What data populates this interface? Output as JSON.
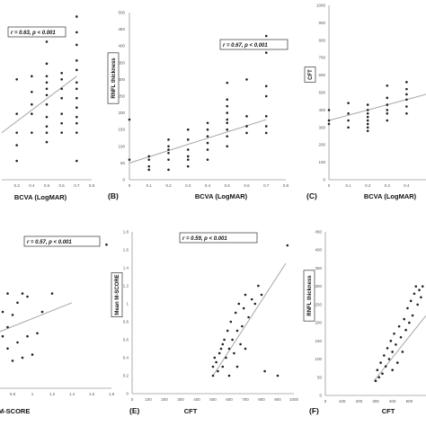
{
  "chart_data": [
    {
      "type": "scatter",
      "panel_label": "",
      "xlabel": "BCVA (LogMAR)",
      "ylabel": "",
      "stat": "r = 0.63, p < 0.001",
      "xlim": [
        0.2,
        0.8
      ],
      "ylim": [
        0,
        550
      ],
      "xticks": [
        "0.3",
        "0.4",
        "0.5",
        "0.6",
        "0.7",
        "0.8"
      ],
      "yticks": [],
      "trend": [
        [
          0.2,
          150
        ],
        [
          0.7,
          330
        ]
      ],
      "points": [
        [
          0.3,
          60
        ],
        [
          0.3,
          110
        ],
        [
          0.3,
          150
        ],
        [
          0.3,
          210
        ],
        [
          0.3,
          320
        ],
        [
          0.4,
          150
        ],
        [
          0.4,
          210
        ],
        [
          0.4,
          240
        ],
        [
          0.4,
          280
        ],
        [
          0.4,
          330
        ],
        [
          0.5,
          120
        ],
        [
          0.5,
          150
        ],
        [
          0.5,
          170
        ],
        [
          0.5,
          200
        ],
        [
          0.5,
          240
        ],
        [
          0.5,
          270
        ],
        [
          0.5,
          290
        ],
        [
          0.5,
          310
        ],
        [
          0.5,
          330
        ],
        [
          0.5,
          370
        ],
        [
          0.5,
          440
        ],
        [
          0.6,
          150
        ],
        [
          0.6,
          180
        ],
        [
          0.6,
          210
        ],
        [
          0.6,
          260
        ],
        [
          0.6,
          290
        ],
        [
          0.6,
          320
        ],
        [
          0.6,
          340
        ],
        [
          0.7,
          60
        ],
        [
          0.7,
          150
        ],
        [
          0.7,
          180
        ],
        [
          0.7,
          200
        ],
        [
          0.7,
          230
        ],
        [
          0.7,
          260
        ],
        [
          0.7,
          290
        ],
        [
          0.7,
          310
        ],
        [
          0.7,
          350
        ],
        [
          0.7,
          380
        ],
        [
          0.7,
          430
        ],
        [
          0.7,
          470
        ],
        [
          0.7,
          520
        ]
      ]
    },
    {
      "type": "scatter",
      "panel_label": "(B)",
      "xlabel": "BCVA (LogMAR)",
      "ylabel": "RNFL thickness",
      "stat": "r = 0.67, p < 0.001",
      "xlim": [
        0,
        0.8
      ],
      "ylim": [
        0,
        500
      ],
      "xticks": [
        "0",
        "0.1",
        "0.2",
        "0.3",
        "0.4",
        "0.5",
        "0.6",
        "0.7",
        "0.8"
      ],
      "yticks": [
        "0",
        "50",
        "100",
        "150",
        "200",
        "250",
        "300",
        "350",
        "400",
        "450",
        "500"
      ],
      "trend": [
        [
          0,
          50
        ],
        [
          0.7,
          180
        ]
      ],
      "points": [
        [
          0,
          60
        ],
        [
          0,
          180
        ],
        [
          0.1,
          30
        ],
        [
          0.1,
          40
        ],
        [
          0.1,
          60
        ],
        [
          0.1,
          70
        ],
        [
          0.2,
          30
        ],
        [
          0.2,
          60
        ],
        [
          0.2,
          80
        ],
        [
          0.2,
          90
        ],
        [
          0.2,
          100
        ],
        [
          0.2,
          120
        ],
        [
          0.3,
          40
        ],
        [
          0.3,
          60
        ],
        [
          0.3,
          70
        ],
        [
          0.3,
          90
        ],
        [
          0.3,
          120
        ],
        [
          0.3,
          150
        ],
        [
          0.4,
          60
        ],
        [
          0.4,
          90
        ],
        [
          0.4,
          110
        ],
        [
          0.4,
          130
        ],
        [
          0.4,
          150
        ],
        [
          0.4,
          170
        ],
        [
          0.5,
          100
        ],
        [
          0.5,
          130
        ],
        [
          0.5,
          150
        ],
        [
          0.5,
          170
        ],
        [
          0.5,
          180
        ],
        [
          0.5,
          200
        ],
        [
          0.5,
          220
        ],
        [
          0.5,
          240
        ],
        [
          0.5,
          290
        ],
        [
          0.6,
          140
        ],
        [
          0.6,
          160
        ],
        [
          0.6,
          190
        ],
        [
          0.6,
          300
        ],
        [
          0.7,
          140
        ],
        [
          0.7,
          160
        ],
        [
          0.7,
          190
        ],
        [
          0.7,
          250
        ],
        [
          0.7,
          280
        ],
        [
          0.7,
          380
        ],
        [
          0.7,
          400
        ],
        [
          0.7,
          430
        ]
      ]
    },
    {
      "type": "scatter",
      "panel_label": "(C)",
      "xlabel": "BCVA (LogMAR)",
      "ylabel": "CFT",
      "stat": "",
      "xlim": [
        0,
        0.5
      ],
      "ylim": [
        0,
        1000
      ],
      "xticks": [
        "0",
        "0.1",
        "0.2",
        "0.3",
        "0.4"
      ],
      "yticks": [
        "0",
        "100",
        "200",
        "300",
        "400",
        "500",
        "600",
        "700",
        "800",
        "900",
        "1000"
      ],
      "trend": [
        [
          0,
          340
        ],
        [
          0.5,
          490
        ]
      ],
      "points": [
        [
          0,
          320
        ],
        [
          0,
          340
        ],
        [
          0,
          400
        ],
        [
          0.1,
          300
        ],
        [
          0.1,
          340
        ],
        [
          0.1,
          380
        ],
        [
          0.1,
          440
        ],
        [
          0.2,
          280
        ],
        [
          0.2,
          300
        ],
        [
          0.2,
          320
        ],
        [
          0.2,
          340
        ],
        [
          0.2,
          360
        ],
        [
          0.2,
          380
        ],
        [
          0.2,
          400
        ],
        [
          0.2,
          430
        ],
        [
          0.3,
          340
        ],
        [
          0.3,
          380
        ],
        [
          0.3,
          400
        ],
        [
          0.3,
          430
        ],
        [
          0.3,
          470
        ],
        [
          0.3,
          540
        ],
        [
          0.4,
          380
        ],
        [
          0.4,
          420
        ],
        [
          0.4,
          460
        ],
        [
          0.4,
          490
        ],
        [
          0.4,
          520
        ],
        [
          0.4,
          560
        ]
      ]
    },
    {
      "type": "scatter",
      "panel_label": "",
      "xlabel": "Mean M-SCORE",
      "ylabel": "",
      "stat": "r = 0.57, p < 0.001",
      "xlim": [
        0.4,
        1.8
      ],
      "ylim": [
        0,
        500
      ],
      "xticks": [
        "0.6",
        "0.8",
        "1",
        "1.2",
        "1.4",
        "1.6",
        "1.8"
      ],
      "yticks": [],
      "trend": [
        [
          0.4,
          150
        ],
        [
          1.4,
          280
        ]
      ],
      "points": [
        [
          0.45,
          140
        ],
        [
          0.45,
          160
        ],
        [
          0.5,
          90
        ],
        [
          0.5,
          200
        ],
        [
          0.55,
          110
        ],
        [
          0.6,
          150
        ],
        [
          0.6,
          300
        ],
        [
          0.65,
          60
        ],
        [
          0.65,
          200
        ],
        [
          0.7,
          170
        ],
        [
          0.7,
          250
        ],
        [
          0.75,
          130
        ],
        [
          0.75,
          200
        ],
        [
          0.75,
          310
        ],
        [
          0.8,
          90
        ],
        [
          0.8,
          240
        ],
        [
          0.85,
          150
        ],
        [
          0.85,
          280
        ],
        [
          0.9,
          100
        ],
        [
          0.9,
          310
        ],
        [
          0.95,
          170
        ],
        [
          0.95,
          300
        ],
        [
          1.0,
          110
        ],
        [
          1.05,
          180
        ],
        [
          1.1,
          250
        ],
        [
          1.2,
          310
        ],
        [
          1.75,
          470
        ]
      ]
    },
    {
      "type": "scatter",
      "panel_label": "(E)",
      "xlabel": "CFT",
      "ylabel": "Mean M-SCORE",
      "stat": "r = 0.59, p < 0.001",
      "xlim": [
        0,
        1000
      ],
      "ylim": [
        0,
        1.8
      ],
      "xticks": [
        "0",
        "100",
        "200",
        "300",
        "400",
        "500",
        "600",
        "700",
        "800",
        "900",
        "1000"
      ],
      "yticks": [
        "0",
        "0.2",
        "0.4",
        "0.6",
        "0.8",
        "1",
        "1.2",
        "1.4",
        "1.6",
        "1.8"
      ],
      "trend": [
        [
          500,
          0.2
        ],
        [
          950,
          1.45
        ]
      ],
      "points": [
        [
          500,
          0.2
        ],
        [
          500,
          0.3
        ],
        [
          510,
          0.4
        ],
        [
          520,
          0.35
        ],
        [
          530,
          0.25
        ],
        [
          540,
          0.45
        ],
        [
          550,
          0.5
        ],
        [
          560,
          0.55
        ],
        [
          560,
          0.3
        ],
        [
          570,
          0.6
        ],
        [
          580,
          0.4
        ],
        [
          590,
          0.7
        ],
        [
          600,
          0.5
        ],
        [
          600,
          0.2
        ],
        [
          610,
          0.8
        ],
        [
          620,
          0.6
        ],
        [
          630,
          0.45
        ],
        [
          640,
          0.9
        ],
        [
          650,
          0.7
        ],
        [
          650,
          0.3
        ],
        [
          660,
          1.0
        ],
        [
          670,
          0.55
        ],
        [
          680,
          0.75
        ],
        [
          690,
          0.95
        ],
        [
          700,
          1.1
        ],
        [
          700,
          0.5
        ],
        [
          720,
          0.85
        ],
        [
          740,
          1.05
        ],
        [
          760,
          1.0
        ],
        [
          780,
          1.2
        ],
        [
          800,
          1.1
        ],
        [
          820,
          0.25
        ],
        [
          900,
          0.2
        ],
        [
          960,
          1.65
        ]
      ]
    },
    {
      "type": "scatter",
      "panel_label": "(F)",
      "xlabel": "CFT",
      "ylabel": "RNFL thickness",
      "stat": "",
      "xlim": [
        0,
        600
      ],
      "ylim": [
        0,
        450
      ],
      "xticks": [
        "0",
        "100",
        "200",
        "300",
        "400",
        "500"
      ],
      "yticks": [
        "0",
        "50",
        "100",
        "150",
        "200",
        "250",
        "300",
        "350",
        "400",
        "450"
      ],
      "trend": [
        [
          290,
          40
        ],
        [
          600,
          220
        ]
      ],
      "points": [
        [
          300,
          40
        ],
        [
          310,
          70
        ],
        [
          320,
          50
        ],
        [
          330,
          90
        ],
        [
          340,
          60
        ],
        [
          350,
          110
        ],
        [
          360,
          80
        ],
        [
          370,
          130
        ],
        [
          380,
          100
        ],
        [
          390,
          150
        ],
        [
          400,
          120
        ],
        [
          400,
          70
        ],
        [
          410,
          170
        ],
        [
          420,
          140
        ],
        [
          430,
          90
        ],
        [
          440,
          190
        ],
        [
          450,
          160
        ],
        [
          460,
          120
        ],
        [
          470,
          210
        ],
        [
          480,
          180
        ],
        [
          490,
          240
        ],
        [
          500,
          200
        ],
        [
          510,
          260
        ],
        [
          520,
          220
        ],
        [
          530,
          280
        ],
        [
          540,
          300
        ],
        [
          550,
          250
        ],
        [
          560,
          290
        ],
        [
          570,
          270
        ],
        [
          580,
          300
        ]
      ]
    }
  ]
}
